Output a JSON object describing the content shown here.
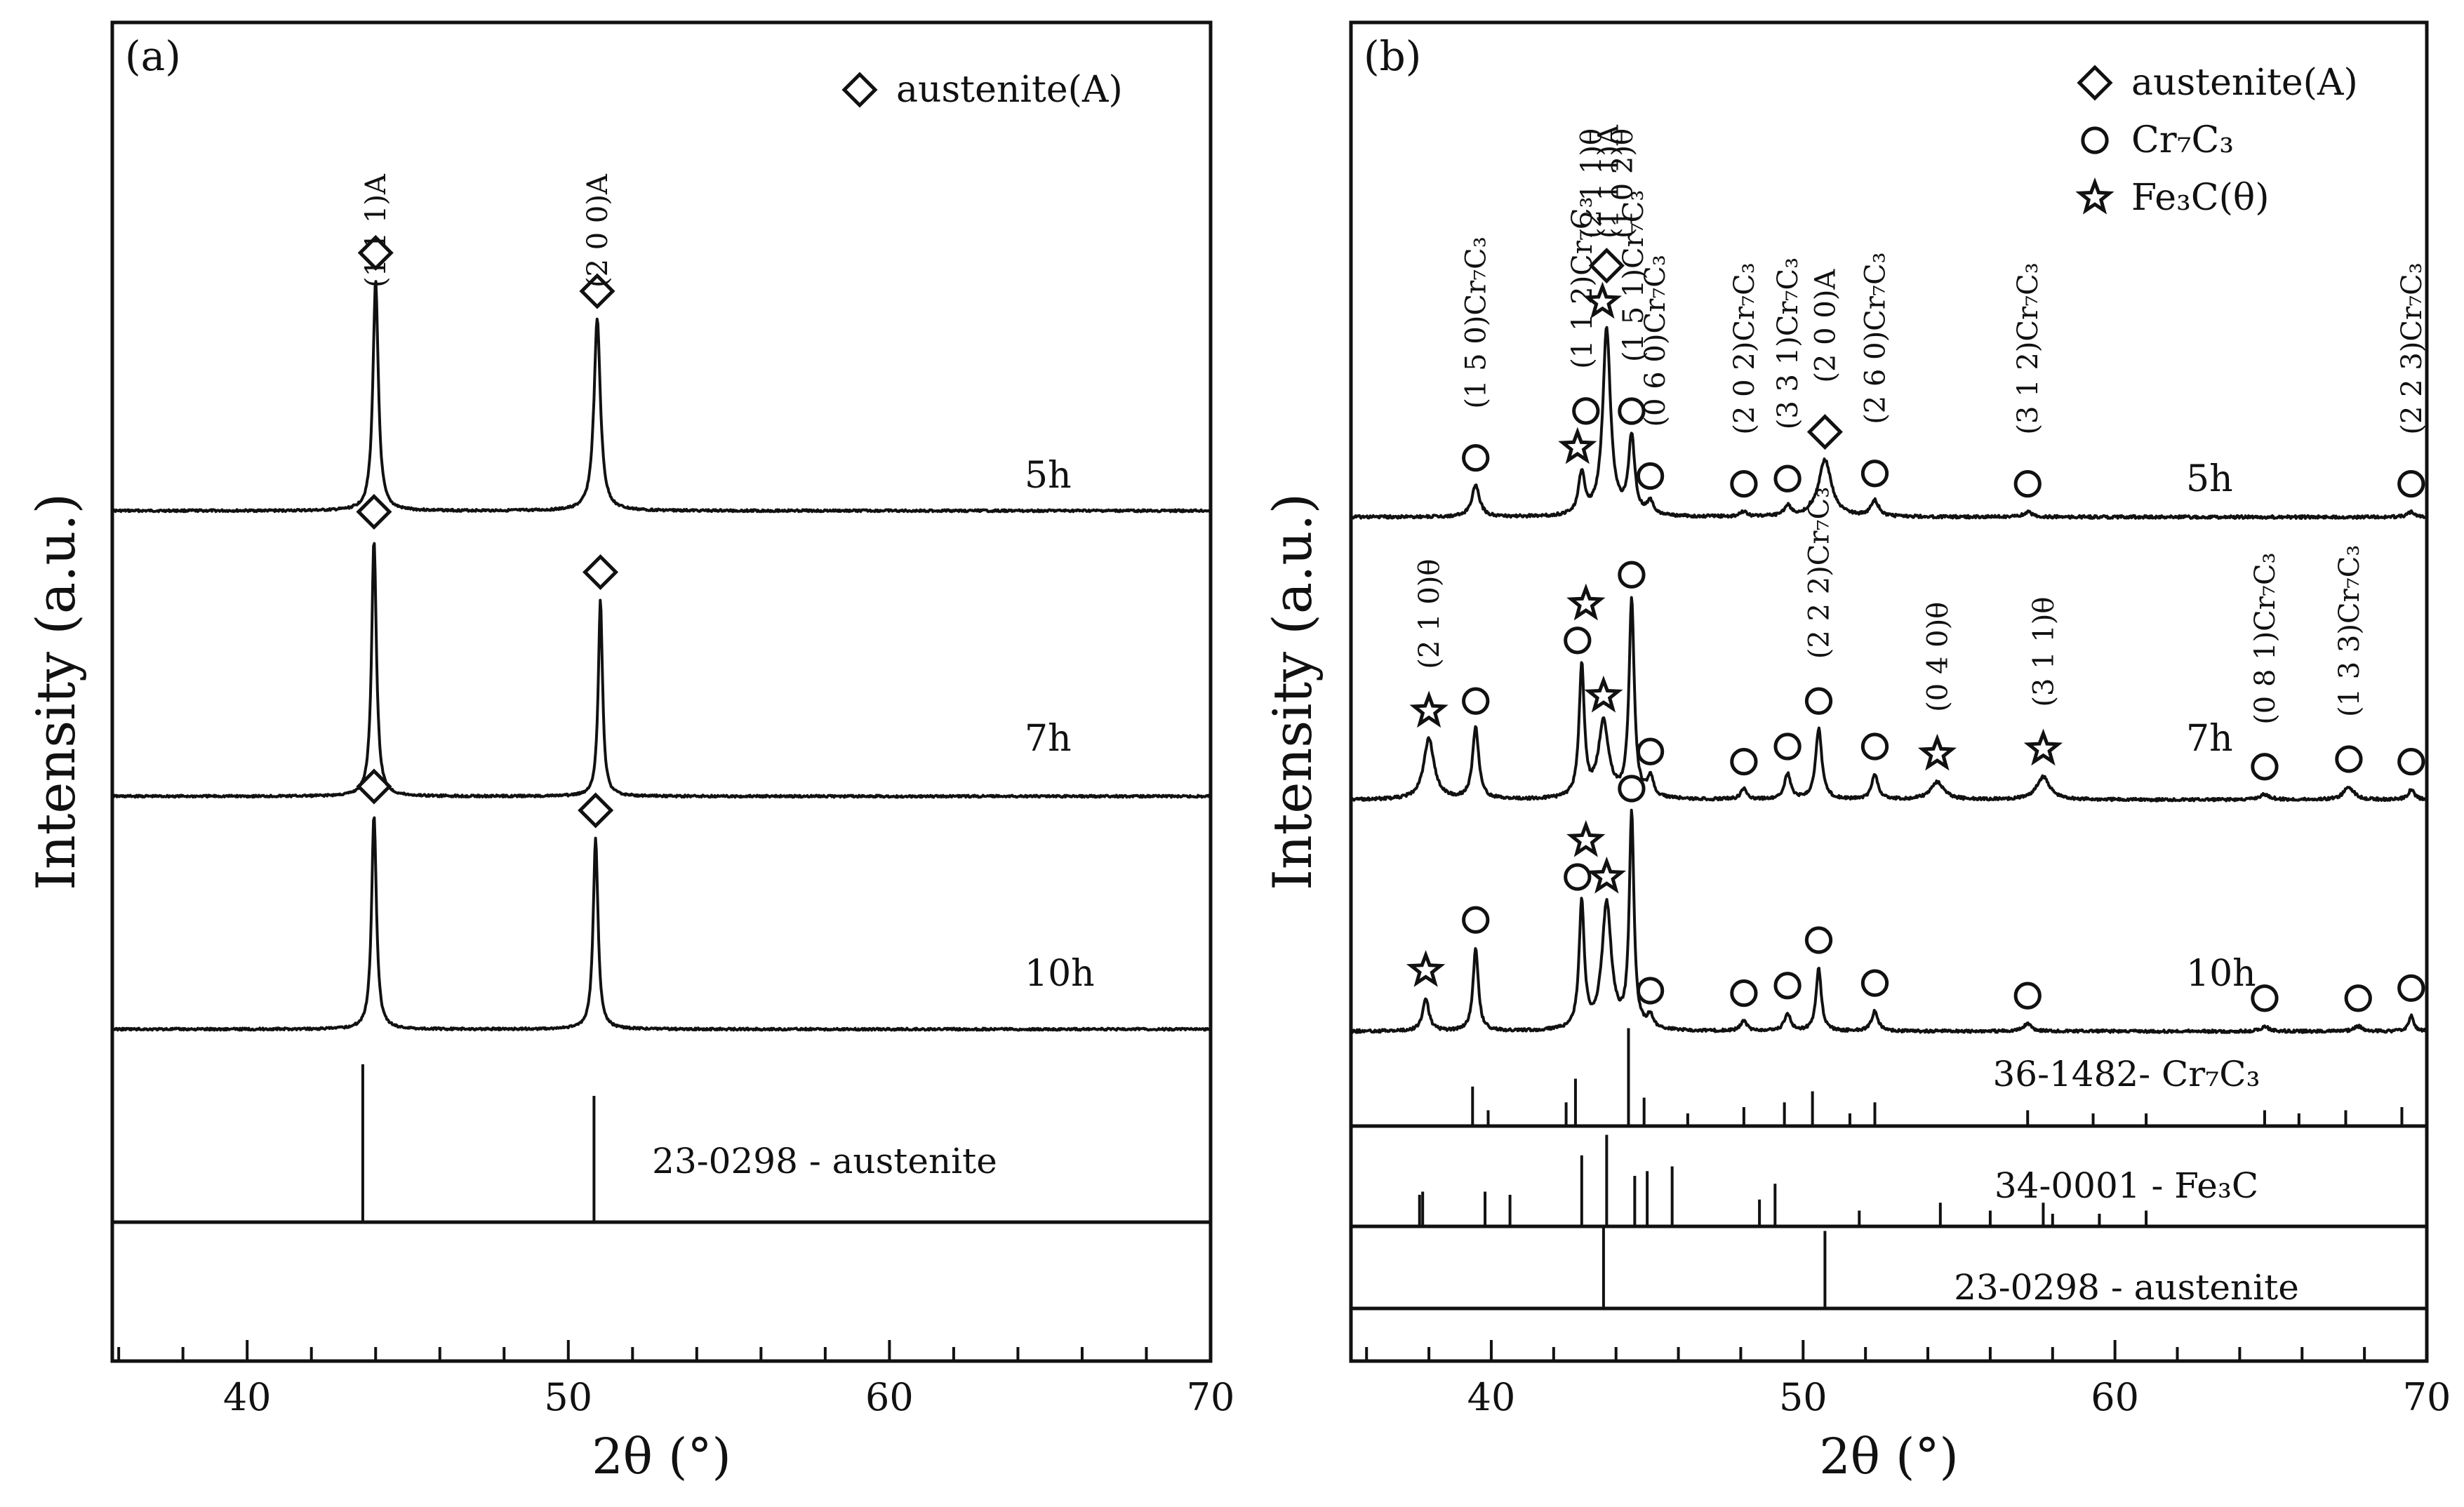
{
  "chart_data": [
    {
      "panel": "(a)",
      "type": "line",
      "xlabel": "2θ (°)",
      "ylabel": "Intensity (a.u.)",
      "xlim": [
        35.8,
        70
      ],
      "xticks": [
        40,
        50,
        60,
        70
      ],
      "legend": [
        {
          "marker": "diamond",
          "label": "austenite(A)"
        }
      ],
      "series": [
        {
          "name": "5h",
          "peaks": [
            {
              "x": 44.0,
              "h": 0.78,
              "w": 0.1,
              "m": [
                "diamond"
              ]
            },
            {
              "x": 50.9,
              "h": 0.65,
              "w": 0.12,
              "m": [
                "diamond"
              ]
            }
          ]
        },
        {
          "name": "7h",
          "peaks": [
            {
              "x": 43.95,
              "h": 0.85,
              "w": 0.09,
              "m": [
                "diamond"
              ]
            },
            {
              "x": 51.0,
              "h": 0.65,
              "w": 0.08,
              "m": [
                "diamond"
              ]
            }
          ]
        },
        {
          "name": "10h",
          "peaks": [
            {
              "x": 43.95,
              "h": 0.9,
              "w": 0.09,
              "m": [
                "diamond"
              ]
            },
            {
              "x": 50.85,
              "h": 0.8,
              "w": 0.09,
              "m": [
                "diamond"
              ]
            }
          ]
        }
      ],
      "references": [
        {
          "label": "23-0298 - austenite",
          "lines": [
            [
              43.6,
              1.0
            ],
            [
              50.8,
              0.8
            ]
          ]
        }
      ],
      "annotations": [
        {
          "text": "(1 1 1)A",
          "x": 44.0,
          "series": "5h"
        },
        {
          "text": "(2 0 0)A",
          "x": 50.9,
          "series": "5h"
        }
      ]
    },
    {
      "panel": "(b)",
      "type": "line",
      "xlabel": "2θ (°)",
      "ylabel": "Intensity (a.u.)",
      "xlim": [
        35.5,
        70
      ],
      "xticks": [
        40,
        50,
        60,
        70
      ],
      "legend": [
        {
          "marker": "diamond",
          "label": "austenite(A)"
        },
        {
          "marker": "circle",
          "label": "Cr₇C₃"
        },
        {
          "marker": "star",
          "label": "Fe₃C(θ)"
        }
      ],
      "series": [
        {
          "name": "5h",
          "peaks": [
            {
              "x": 39.5,
              "h": 0.12,
              "w": 0.15,
              "m": [
                "circle"
              ]
            },
            {
              "x": 42.9,
              "h": 0.16,
              "w": 0.12,
              "m": [
                "star",
                "circle"
              ]
            },
            {
              "x": 43.7,
              "h": 0.72,
              "w": 0.15,
              "m": [
                "star",
                "diamond"
              ]
            },
            {
              "x": 44.5,
              "h": 0.3,
              "w": 0.12,
              "m": [
                "circle"
              ]
            },
            {
              "x": 45.1,
              "h": 0.05,
              "w": 0.12,
              "m": [
                "circle"
              ]
            },
            {
              "x": 48.1,
              "h": 0.02,
              "w": 0.12,
              "m": [
                "circle"
              ]
            },
            {
              "x": 49.5,
              "h": 0.04,
              "w": 0.12,
              "m": [
                "circle"
              ]
            },
            {
              "x": 50.7,
              "h": 0.22,
              "w": 0.25,
              "m": [
                "diamond"
              ]
            },
            {
              "x": 52.3,
              "h": 0.06,
              "w": 0.15,
              "m": [
                "circle"
              ]
            },
            {
              "x": 57.2,
              "h": 0.02,
              "w": 0.15,
              "m": [
                "circle"
              ]
            },
            {
              "x": 69.5,
              "h": 0.02,
              "w": 0.15,
              "m": [
                "circle"
              ]
            }
          ]
        },
        {
          "name": "7h",
          "peaks": [
            {
              "x": 38.0,
              "h": 0.24,
              "w": 0.2,
              "m": [
                "star"
              ]
            },
            {
              "x": 39.5,
              "h": 0.28,
              "w": 0.12,
              "m": [
                "circle"
              ]
            },
            {
              "x": 42.9,
              "h": 0.52,
              "w": 0.1,
              "m": [
                "circle",
                "star"
              ]
            },
            {
              "x": 43.6,
              "h": 0.3,
              "w": 0.2,
              "m": [
                "star"
              ]
            },
            {
              "x": 44.5,
              "h": 0.78,
              "w": 0.1,
              "m": [
                "circle"
              ]
            },
            {
              "x": 45.1,
              "h": 0.08,
              "w": 0.12,
              "m": [
                "circle"
              ]
            },
            {
              "x": 48.1,
              "h": 0.04,
              "w": 0.12,
              "m": [
                "circle"
              ]
            },
            {
              "x": 49.5,
              "h": 0.1,
              "w": 0.12,
              "m": [
                "circle"
              ]
            },
            {
              "x": 50.5,
              "h": 0.28,
              "w": 0.12,
              "m": [
                "circle"
              ]
            },
            {
              "x": 52.3,
              "h": 0.1,
              "w": 0.12,
              "m": [
                "circle"
              ]
            },
            {
              "x": 54.3,
              "h": 0.07,
              "w": 0.25,
              "m": [
                "star"
              ]
            },
            {
              "x": 57.7,
              "h": 0.09,
              "w": 0.25,
              "m": [
                "star"
              ]
            },
            {
              "x": 64.8,
              "h": 0.02,
              "w": 0.2,
              "m": [
                "circle"
              ]
            },
            {
              "x": 67.5,
              "h": 0.05,
              "w": 0.2,
              "m": [
                "circle"
              ]
            },
            {
              "x": 69.5,
              "h": 0.04,
              "w": 0.12,
              "m": [
                "circle"
              ]
            }
          ]
        },
        {
          "name": "10h",
          "peaks": [
            {
              "x": 37.9,
              "h": 0.13,
              "w": 0.12,
              "m": [
                "star"
              ]
            },
            {
              "x": 39.5,
              "h": 0.33,
              "w": 0.1,
              "m": [
                "circle"
              ]
            },
            {
              "x": 42.9,
              "h": 0.5,
              "w": 0.1,
              "m": [
                "circle",
                "star"
              ]
            },
            {
              "x": 43.7,
              "h": 0.5,
              "w": 0.18,
              "m": [
                "star"
              ]
            },
            {
              "x": 44.5,
              "h": 0.85,
              "w": 0.09,
              "m": [
                "circle"
              ]
            },
            {
              "x": 45.1,
              "h": 0.05,
              "w": 0.12,
              "m": [
                "circle"
              ]
            },
            {
              "x": 48.1,
              "h": 0.04,
              "w": 0.12,
              "m": [
                "circle"
              ]
            },
            {
              "x": 49.5,
              "h": 0.07,
              "w": 0.12,
              "m": [
                "circle"
              ]
            },
            {
              "x": 50.5,
              "h": 0.25,
              "w": 0.1,
              "m": [
                "circle"
              ]
            },
            {
              "x": 52.3,
              "h": 0.08,
              "w": 0.12,
              "m": [
                "circle"
              ]
            },
            {
              "x": 57.2,
              "h": 0.03,
              "w": 0.15,
              "m": [
                "circle"
              ]
            },
            {
              "x": 64.8,
              "h": 0.02,
              "w": 0.15,
              "m": [
                "circle"
              ]
            },
            {
              "x": 67.8,
              "h": 0.02,
              "w": 0.15,
              "m": [
                "circle"
              ]
            },
            {
              "x": 69.5,
              "h": 0.06,
              "w": 0.1,
              "m": [
                "circle"
              ]
            }
          ]
        }
      ],
      "references": [
        {
          "label": "36-1482- Cr₇C₃",
          "lines": [
            [
              39.4,
              0.25
            ],
            [
              39.9,
              0.1
            ],
            [
              42.4,
              0.15
            ],
            [
              42.7,
              0.3
            ],
            [
              44.4,
              0.62
            ],
            [
              44.9,
              0.18
            ],
            [
              46.3,
              0.08
            ],
            [
              48.1,
              0.12
            ],
            [
              49.4,
              0.15
            ],
            [
              50.3,
              0.22
            ],
            [
              51.5,
              0.08
            ],
            [
              52.3,
              0.15
            ],
            [
              57.2,
              0.1
            ],
            [
              59.3,
              0.08
            ],
            [
              61.0,
              0.08
            ],
            [
              64.8,
              0.1
            ],
            [
              65.9,
              0.08
            ],
            [
              67.4,
              0.1
            ],
            [
              69.2,
              0.12
            ]
          ]
        },
        {
          "label": "34-0001 - Fe₃C",
          "lines": [
            [
              37.7,
              0.2
            ],
            [
              37.8,
              0.22
            ],
            [
              39.8,
              0.22
            ],
            [
              40.6,
              0.2
            ],
            [
              42.9,
              0.45
            ],
            [
              43.7,
              0.58
            ],
            [
              44.6,
              0.32
            ],
            [
              45.0,
              0.35
            ],
            [
              45.8,
              0.38
            ],
            [
              48.6,
              0.17
            ],
            [
              49.1,
              0.27
            ],
            [
              51.8,
              0.1
            ],
            [
              54.4,
              0.15
            ],
            [
              56.0,
              0.1
            ],
            [
              57.7,
              0.15
            ],
            [
              58.0,
              0.08
            ],
            [
              59.5,
              0.08
            ],
            [
              61.0,
              0.1
            ]
          ]
        },
        {
          "label": "23-0298 - austenite",
          "lines": [
            [
              43.6,
              0.9
            ],
            [
              50.7,
              0.85
            ]
          ]
        }
      ],
      "annotations": [
        {
          "text": "(1 5 0)Cr₇C₃",
          "x": 39.5,
          "series": "5h"
        },
        {
          "text": "(1 1 2)Cr₇C₃",
          "x": 42.9,
          "series": "5h"
        },
        {
          "text": "(2 1 1)θ",
          "x": 43.2,
          "series": "5h"
        },
        {
          "text": "(1 1 1)A",
          "x": 43.75,
          "series": "5h"
        },
        {
          "text": "(1 0 2)θ",
          "x": 44.2,
          "series": "5h"
        },
        {
          "text": "(1 5 1)Cr₇C₃",
          "x": 44.55,
          "series": "5h"
        },
        {
          "text": "(0 6 0)Cr₇C₃",
          "x": 45.25,
          "series": "5h"
        },
        {
          "text": "(2 0 2)Cr₇C₃",
          "x": 48.1,
          "series": "5h"
        },
        {
          "text": "(3 3 1)Cr₇C₃",
          "x": 49.5,
          "series": "5h"
        },
        {
          "text": "(2 0 0)A",
          "x": 50.7,
          "series": "5h"
        },
        {
          "text": "(2 6 0)Cr₇C₃",
          "x": 52.3,
          "series": "5h"
        },
        {
          "text": "(3 1 2)Cr₇C₃",
          "x": 57.2,
          "series": "5h"
        },
        {
          "text": "(2 2 3)Cr₇C₃",
          "x": 69.5,
          "series": "5h"
        },
        {
          "text": "(2 1 0)θ",
          "x": 38.0,
          "series": "7h"
        },
        {
          "text": "(2 2 2)Cr₇C₃",
          "x": 50.5,
          "series": "7h"
        },
        {
          "text": "(0 4 0)θ",
          "x": 54.3,
          "series": "7h"
        },
        {
          "text": "(3 1 1)θ",
          "x": 57.7,
          "series": "7h"
        },
        {
          "text": "(0 8 1)Cr₇C₃",
          "x": 64.8,
          "series": "7h"
        },
        {
          "text": "(1 3 3)Cr₇C₃",
          "x": 67.5,
          "series": "7h"
        }
      ]
    }
  ]
}
